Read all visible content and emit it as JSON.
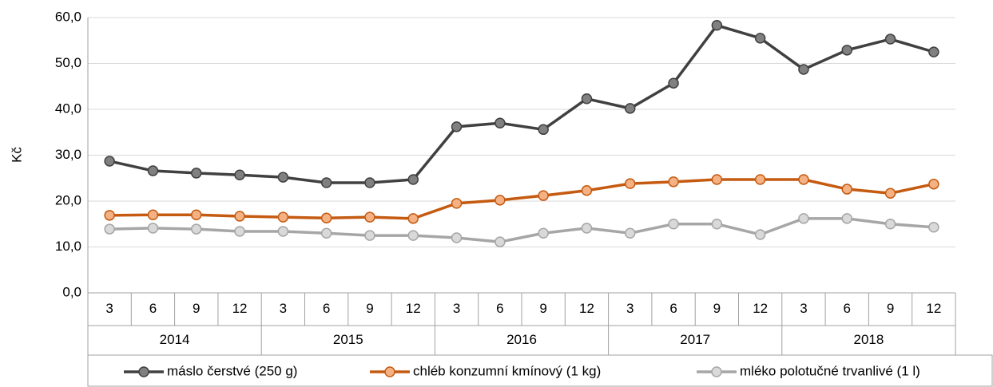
{
  "chart_data": {
    "type": "line",
    "y_label": "Kč",
    "categories": [
      "3",
      "6",
      "9",
      "12",
      "3",
      "6",
      "9",
      "12",
      "3",
      "6",
      "9",
      "12",
      "3",
      "6",
      "9",
      "12",
      "3",
      "6",
      "9",
      "12"
    ],
    "groups": [
      "2014",
      "2015",
      "2016",
      "2017",
      "2018"
    ],
    "ylim": [
      0,
      60
    ],
    "yticks": [
      {
        "value": 0,
        "label": "0,0"
      },
      {
        "value": 10,
        "label": "10,0"
      },
      {
        "value": 20,
        "label": "20,0"
      },
      {
        "value": 30,
        "label": "30,0"
      },
      {
        "value": 40,
        "label": "40,0"
      },
      {
        "value": 50,
        "label": "50,0"
      },
      {
        "value": 60,
        "label": "60,0"
      }
    ],
    "grid": true,
    "legend": "bottom",
    "series": [
      {
        "name": "máslo čerstvé (250 g)",
        "color": "#404040",
        "marker_color": "#808080",
        "values": [
          28.7,
          26.6,
          26.1,
          25.7,
          25.2,
          24.0,
          24.0,
          24.7,
          36.2,
          37.0,
          35.6,
          42.3,
          40.2,
          45.7,
          58.3,
          55.5,
          48.7,
          52.9,
          55.3,
          52.5
        ]
      },
      {
        "name": "chléb konzumní kmínový (1 kg)",
        "color": "#c55a11",
        "marker_color": "#f4b183",
        "values": [
          16.9,
          17.0,
          17.0,
          16.7,
          16.5,
          16.3,
          16.5,
          16.2,
          19.5,
          20.2,
          21.2,
          22.3,
          23.8,
          24.2,
          24.7,
          24.7,
          24.7,
          22.6,
          21.7,
          23.7
        ]
      },
      {
        "name": "mléko polotučné trvanlivé (1 l)",
        "color": "#a6a6a6",
        "marker_color": "#d9d9d9",
        "values": [
          13.9,
          14.1,
          13.9,
          13.4,
          13.4,
          13.0,
          12.5,
          12.5,
          12.0,
          11.1,
          13.0,
          14.1,
          13.0,
          15.0,
          15.0,
          12.7,
          16.2,
          16.2,
          15.0,
          14.3
        ]
      }
    ]
  }
}
